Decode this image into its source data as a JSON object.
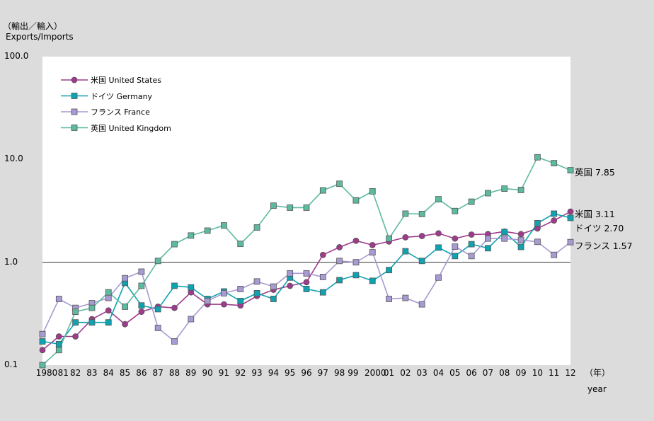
{
  "chart_data": {
    "type": "line",
    "title": "",
    "ylabel_ja": "（輸出／輸入）",
    "ylabel_en": "Exports/Imports",
    "xlabel_ja": "（年）",
    "xlabel_en": "year",
    "yscale": "log",
    "ylim": [
      0.1,
      100
    ],
    "y_ticks": [
      "0.1",
      "1.0",
      "10.0",
      "100.0"
    ],
    "reference_line": 1.0,
    "x": [
      "1980",
      "81",
      "82",
      "83",
      "84",
      "85",
      "86",
      "87",
      "88",
      "89",
      "90",
      "91",
      "92",
      "93",
      "94",
      "95",
      "96",
      "97",
      "98",
      "99",
      "2000",
      "01",
      "02",
      "03",
      "04",
      "05",
      "06",
      "07",
      "08",
      "09",
      "10",
      "11",
      "12"
    ],
    "legend_position": "top-left",
    "series": [
      {
        "name": "米国 United States",
        "color": "#9e3b8c",
        "marker": "circle",
        "values": [
          0.14,
          0.19,
          0.19,
          0.28,
          0.34,
          0.25,
          0.33,
          0.37,
          0.36,
          0.51,
          0.39,
          0.39,
          0.38,
          0.47,
          0.54,
          0.59,
          0.64,
          1.18,
          1.4,
          1.62,
          1.47,
          1.59,
          1.75,
          1.8,
          1.91,
          1.7,
          1.86,
          1.88,
          1.99,
          1.88,
          2.13,
          2.55,
          3.11
        ],
        "end_label": "米国 3.11"
      },
      {
        "name": "ドイツ Germany",
        "color": "#0fa2b0",
        "marker": "square",
        "values": [
          0.17,
          0.16,
          0.26,
          0.26,
          0.26,
          0.63,
          0.38,
          0.35,
          0.59,
          0.57,
          0.44,
          0.52,
          0.42,
          0.5,
          0.44,
          0.71,
          0.55,
          0.51,
          0.67,
          0.75,
          0.66,
          0.84,
          1.28,
          1.03,
          1.39,
          1.15,
          1.5,
          1.37,
          1.97,
          1.41,
          2.4,
          2.97,
          2.7
        ],
        "end_label": "ドイツ 2.70"
      },
      {
        "name": "フランス France",
        "color": "#a89ad2",
        "marker": "square",
        "values": [
          0.2,
          0.44,
          0.36,
          0.4,
          0.45,
          0.7,
          0.81,
          0.23,
          0.17,
          0.28,
          0.42,
          0.5,
          0.55,
          0.65,
          0.58,
          0.78,
          0.78,
          0.72,
          1.03,
          1.0,
          1.25,
          0.44,
          0.45,
          0.39,
          0.71,
          1.42,
          1.15,
          1.7,
          1.7,
          1.65,
          1.58,
          1.18,
          1.57
        ],
        "end_label": "フランス 1.57"
      },
      {
        "name": "英国 United Kingdom",
        "color": "#5dbaa0",
        "marker": "square",
        "values": [
          0.1,
          0.14,
          0.33,
          0.36,
          0.51,
          0.37,
          0.59,
          1.03,
          1.5,
          1.82,
          2.03,
          2.28,
          1.51,
          2.18,
          3.55,
          3.4,
          3.4,
          5.0,
          5.8,
          4.0,
          4.9,
          1.7,
          2.97,
          2.95,
          4.1,
          3.15,
          3.88,
          4.7,
          5.2,
          5.05,
          10.5,
          9.2,
          7.85
        ],
        "end_label": "英国 7.85"
      }
    ]
  }
}
